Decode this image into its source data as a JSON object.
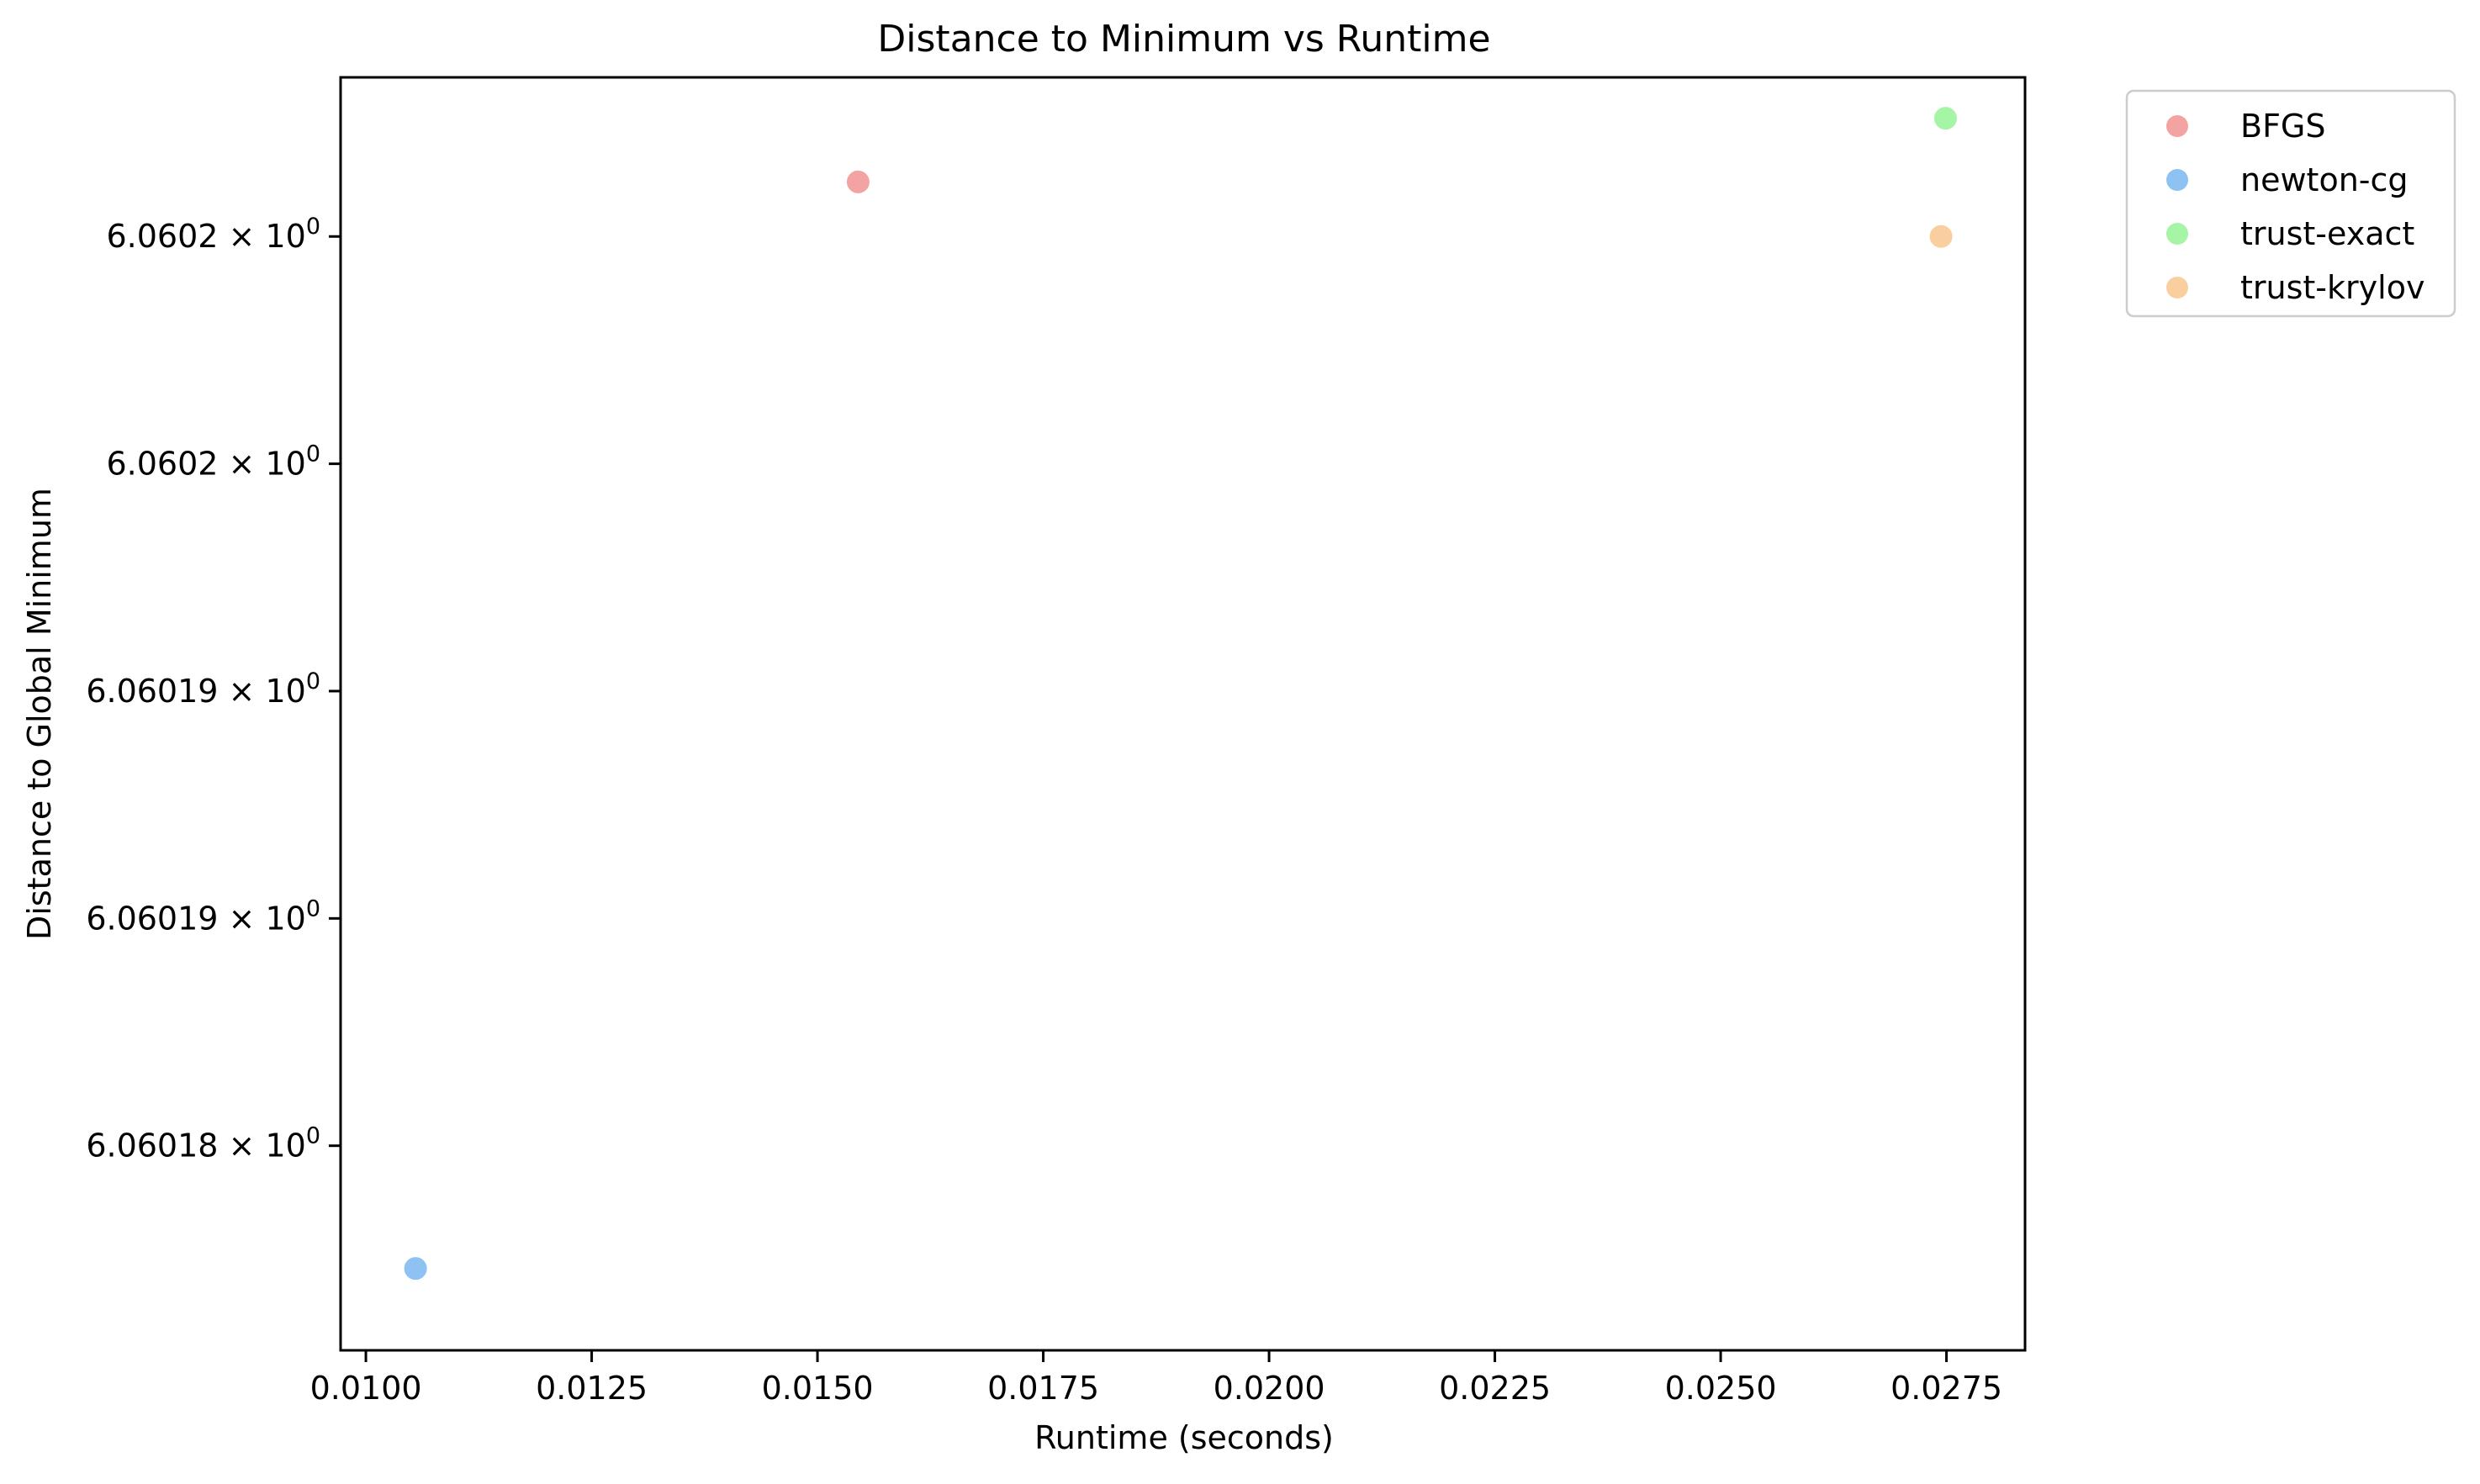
{
  "chart_data": {
    "type": "scatter",
    "title": "Distance to Minimum vs Runtime",
    "xlabel": "Runtime (seconds)",
    "ylabel": "Distance to Global Minimum",
    "xlim": [
      0.00972,
      0.02837
    ],
    "ylim": [
      6.0601755,
      6.0602035
    ],
    "y_scale": "log",
    "grid": false,
    "legend_position": "outside-top-right",
    "x_ticks": [
      {
        "value": 0.01,
        "label": "0.0100"
      },
      {
        "value": 0.0125,
        "label": "0.0125"
      },
      {
        "value": 0.015,
        "label": "0.0150"
      },
      {
        "value": 0.0175,
        "label": "0.0175"
      },
      {
        "value": 0.02,
        "label": "0.0200"
      },
      {
        "value": 0.0225,
        "label": "0.0225"
      },
      {
        "value": 0.025,
        "label": "0.0250"
      },
      {
        "value": 0.0275,
        "label": "0.0275"
      }
    ],
    "y_ticks": [
      {
        "value": 6.0602,
        "mantissa": "6.0602"
      },
      {
        "value": 6.060195,
        "mantissa": "6.0602"
      },
      {
        "value": 6.06019,
        "mantissa": "6.06019"
      },
      {
        "value": 6.060185,
        "mantissa": "6.06019"
      },
      {
        "value": 6.06018,
        "mantissa": "6.06018"
      }
    ],
    "y_tick_suffix": {
      "times": "×",
      "base": "10",
      "exponent": "0"
    },
    "series": [
      {
        "name": "BFGS",
        "color": "#f4a3a3",
        "points": [
          {
            "x": 0.01545,
            "y": 6.0602012
          }
        ]
      },
      {
        "name": "newton-cg",
        "color": "#8ec2f3",
        "points": [
          {
            "x": 0.01055,
            "y": 6.0601773
          }
        ]
      },
      {
        "name": "trust-exact",
        "color": "#a6f5a6",
        "points": [
          {
            "x": 0.02749,
            "y": 6.0602026
          }
        ]
      },
      {
        "name": "trust-krylov",
        "color": "#f9cfa0",
        "points": [
          {
            "x": 0.02744,
            "y": 6.0602
          }
        ]
      }
    ]
  }
}
